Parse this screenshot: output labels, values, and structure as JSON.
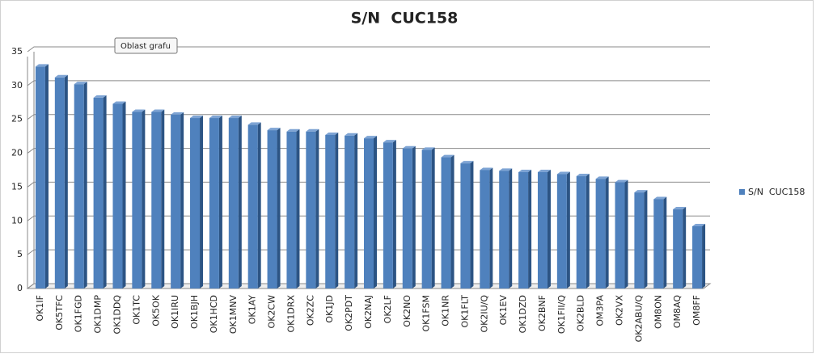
{
  "chart_data": {
    "type": "bar",
    "title": "S/N  CUC158",
    "tooltip": "Oblast grafu",
    "categories": [
      "OK1IF",
      "OK5TFC",
      "OK1FGD",
      "OK1DMP",
      "OK1DDQ",
      "OK1TC",
      "OK5OK",
      "OK1IRU",
      "OK1BJH",
      "OK1HCD",
      "OK1MNV",
      "OK1AY",
      "OK2CW",
      "OK1DRX",
      "OK2ZC",
      "OK1JD",
      "OK2PDT",
      "OK2NAJ",
      "OK2LF",
      "OK2NO",
      "OK1FSM",
      "OK1NR",
      "OK1FLT",
      "OK2IU/Q",
      "OK1EV",
      "OK1DZD",
      "OK2BNF",
      "OK1FII/Q",
      "OK2BLD",
      "OM3PA",
      "OK2VX",
      "OK2ABU/Q",
      "OM8ON",
      "OM8AQ",
      "OM8FF"
    ],
    "series": [
      {
        "name": "S/N  CUC158",
        "color": "#4f81bd",
        "values": [
          32.8,
          31.2,
          30.2,
          28.2,
          27.3,
          26.1,
          26.1,
          25.7,
          25.2,
          25.2,
          25.2,
          24.2,
          23.4,
          23.2,
          23.2,
          22.7,
          22.6,
          22.2,
          21.6,
          20.7,
          20.5,
          19.4,
          18.5,
          17.5,
          17.4,
          17.2,
          17.2,
          16.9,
          16.6,
          16.2,
          15.7,
          14.2,
          13.2,
          11.7,
          9.2
        ]
      }
    ],
    "ylim": [
      0,
      35
    ],
    "yticks": [
      0,
      5,
      10,
      15,
      20,
      25,
      30,
      35
    ],
    "grid": true,
    "legend": "right"
  }
}
